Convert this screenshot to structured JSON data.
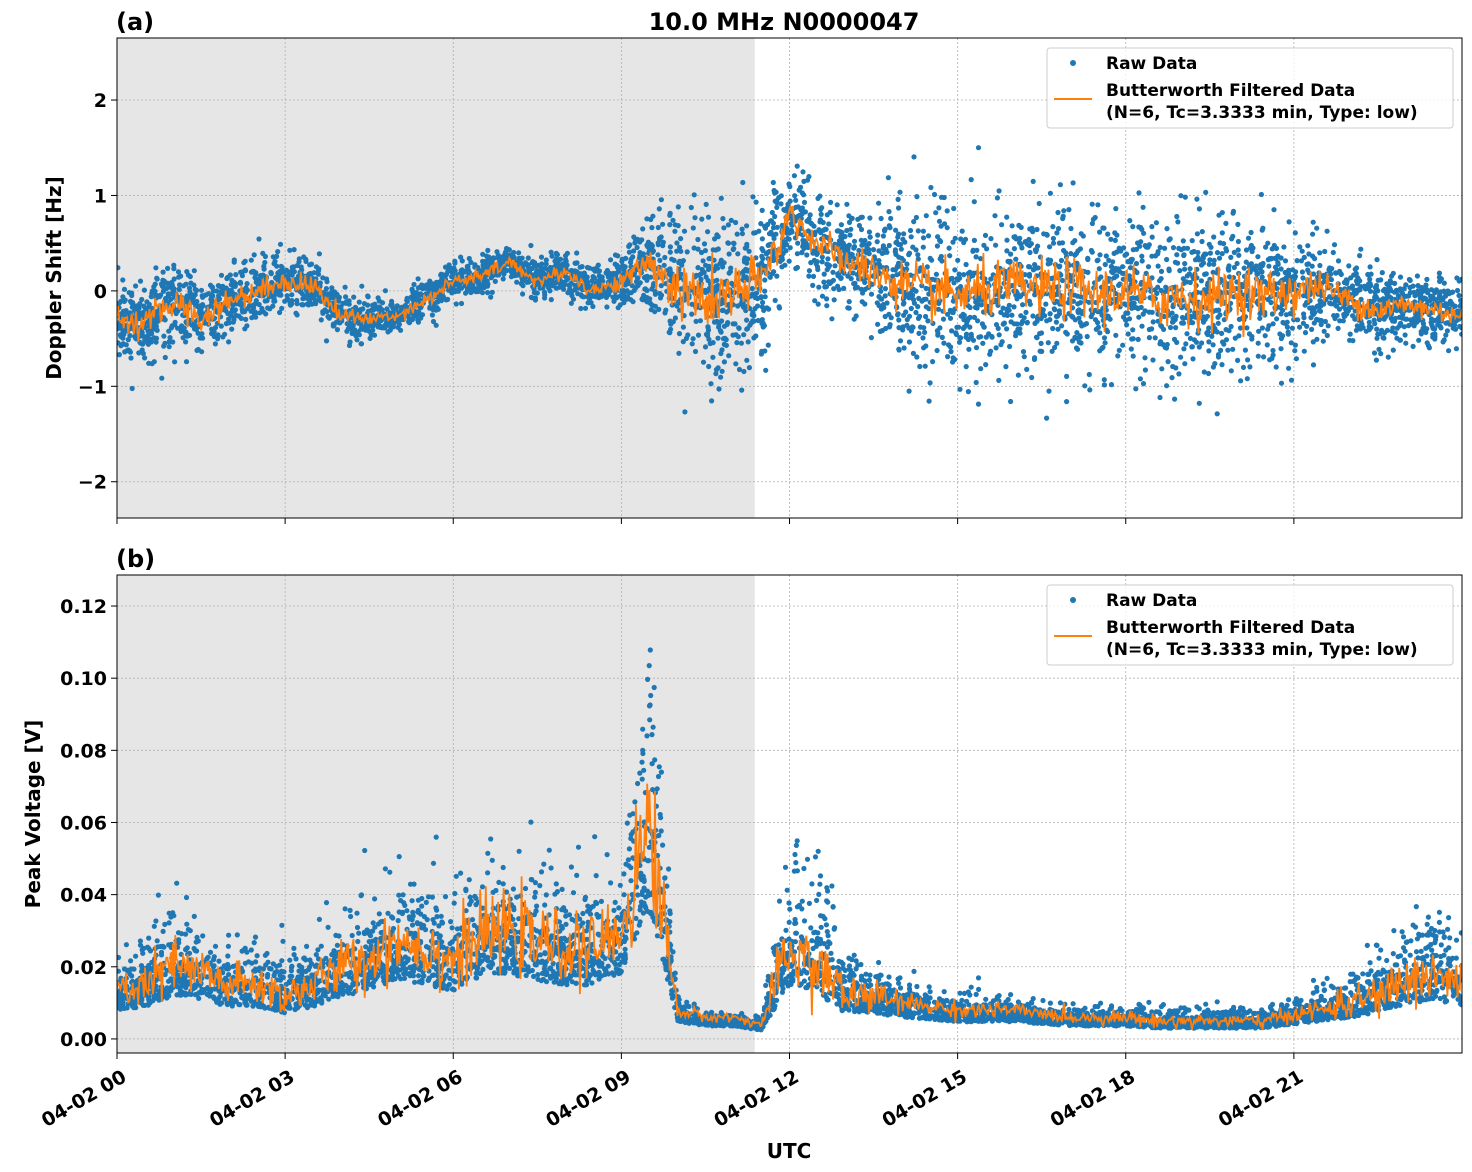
{
  "figure_title": "10.0 MHz N0000047",
  "colors": {
    "raw": "#1f77b4",
    "filtered": "#ff7f0e",
    "shade": "#e6e6e6"
  },
  "chart_data": [
    {
      "type": "scatter",
      "panel_label": "(a)",
      "title": "10.0 MHz N0000047",
      "xlabel": "",
      "ylabel": "Doppler Shift [Hz]",
      "xlim_hours": [
        0,
        24
      ],
      "ylim": [
        -2.38,
        2.65
      ],
      "yticks": [
        -2,
        -1,
        0,
        1,
        2
      ],
      "ytick_labels": [
        "−2",
        "−1",
        "0",
        "1",
        "2"
      ],
      "grid": true,
      "shaded_region_hours": [
        0,
        11.38
      ],
      "legend": {
        "placement": "top-right",
        "entries": [
          "Raw Data",
          "Butterworth Filtered Data",
          "(N=6, Tc=3.3333 min, Type: low)"
        ]
      },
      "x_hours": [
        0,
        0.5,
        1,
        1.5,
        2,
        2.5,
        3,
        3.5,
        4,
        4.5,
        5,
        5.5,
        6,
        6.5,
        7,
        7.5,
        8,
        8.5,
        9,
        9.5,
        10,
        10.5,
        11,
        11.5,
        12,
        12.5,
        13,
        13.5,
        14,
        14.5,
        15,
        15.5,
        16,
        16.5,
        17,
        17.5,
        18,
        18.5,
        19,
        19.5,
        20,
        20.5,
        21,
        21.5,
        22,
        22.5,
        23,
        23.5,
        24
      ],
      "series": [
        {
          "name": "Butterworth Filtered Data",
          "values": [
            -0.3,
            -0.35,
            -0.1,
            -0.3,
            -0.1,
            0.0,
            0.1,
            0.05,
            -0.25,
            -0.3,
            -0.25,
            -0.1,
            0.1,
            0.15,
            0.3,
            0.1,
            0.2,
            0.0,
            0.1,
            0.3,
            0.0,
            -0.1,
            -0.05,
            0.1,
            0.8,
            0.5,
            0.3,
            0.2,
            0.05,
            0.0,
            -0.05,
            0.0,
            0.05,
            0.0,
            0.05,
            -0.05,
            0.0,
            -0.1,
            -0.05,
            -0.1,
            0.0,
            -0.05,
            0.0,
            0.05,
            -0.1,
            -0.2,
            -0.15,
            -0.2,
            -0.25
          ]
        },
        {
          "name": "Raw Data",
          "spread": [
            0.4,
            0.4,
            0.45,
            0.4,
            0.35,
            0.35,
            0.35,
            0.3,
            0.25,
            0.2,
            0.2,
            0.2,
            0.2,
            0.2,
            0.2,
            0.2,
            0.2,
            0.25,
            0.25,
            0.45,
            0.8,
            0.9,
            0.9,
            0.8,
            0.45,
            0.5,
            0.5,
            0.6,
            0.75,
            0.8,
            0.8,
            0.8,
            0.8,
            0.8,
            0.85,
            0.85,
            0.8,
            0.85,
            0.9,
            0.8,
            0.8,
            0.75,
            0.7,
            0.45,
            0.4,
            0.4,
            0.4,
            0.35,
            0.35
          ]
        }
      ]
    },
    {
      "type": "scatter",
      "panel_label": "(b)",
      "xlabel": "UTC",
      "ylabel": "Peak Voltage [V]",
      "xlim_hours": [
        0,
        24
      ],
      "ylim": [
        -0.0039,
        0.1286
      ],
      "yticks": [
        0,
        0.02,
        0.04,
        0.06,
        0.08,
        0.1,
        0.12
      ],
      "ytick_labels": [
        "0.00",
        "0.02",
        "0.04",
        "0.06",
        "0.08",
        "0.10",
        "0.12"
      ],
      "xticks_hours": [
        0,
        3,
        6,
        9,
        12,
        15,
        18,
        21
      ],
      "xtick_labels": [
        "04-02 00",
        "04-02 03",
        "04-02 06",
        "04-02 09",
        "04-02 12",
        "04-02 15",
        "04-02 18",
        "04-02 21"
      ],
      "grid": true,
      "shaded_region_hours": [
        0,
        11.38
      ],
      "legend": {
        "placement": "top-right",
        "entries": [
          "Raw Data",
          "Butterworth Filtered Data",
          "(N=6, Tc=3.3333 min, Type: low)"
        ]
      },
      "x_hours": [
        0,
        0.5,
        1,
        1.5,
        2,
        2.5,
        3,
        3.5,
        4,
        4.5,
        5,
        5.5,
        6,
        6.5,
        7,
        7.5,
        8,
        8.5,
        9,
        9.5,
        10,
        10.5,
        11,
        11.5,
        12,
        12.5,
        13,
        13.5,
        14,
        14.5,
        15,
        15.5,
        16,
        16.5,
        17,
        17.5,
        18,
        18.5,
        19,
        19.5,
        20,
        20.5,
        21,
        21.5,
        22,
        22.5,
        23,
        23.5,
        24
      ],
      "series": [
        {
          "name": "Butterworth Filtered Data",
          "values": [
            0.013,
            0.015,
            0.02,
            0.018,
            0.015,
            0.015,
            0.012,
            0.015,
            0.02,
            0.022,
            0.028,
            0.025,
            0.022,
            0.028,
            0.03,
            0.027,
            0.025,
            0.025,
            0.03,
            0.06,
            0.008,
            0.006,
            0.006,
            0.004,
            0.025,
            0.02,
            0.012,
            0.012,
            0.01,
            0.009,
            0.008,
            0.008,
            0.008,
            0.007,
            0.006,
            0.006,
            0.006,
            0.005,
            0.005,
            0.005,
            0.005,
            0.005,
            0.007,
            0.008,
            0.01,
            0.012,
            0.016,
            0.018,
            0.015
          ]
        },
        {
          "name": "Raw Data",
          "spread": [
            0.008,
            0.01,
            0.015,
            0.012,
            0.01,
            0.01,
            0.009,
            0.01,
            0.012,
            0.014,
            0.015,
            0.015,
            0.016,
            0.018,
            0.018,
            0.016,
            0.015,
            0.015,
            0.016,
            0.04,
            0.004,
            0.002,
            0.002,
            0.002,
            0.02,
            0.02,
            0.01,
            0.008,
            0.005,
            0.004,
            0.004,
            0.004,
            0.003,
            0.003,
            0.003,
            0.003,
            0.003,
            0.003,
            0.003,
            0.003,
            0.003,
            0.003,
            0.004,
            0.005,
            0.007,
            0.009,
            0.012,
            0.014,
            0.012
          ]
        }
      ]
    }
  ]
}
